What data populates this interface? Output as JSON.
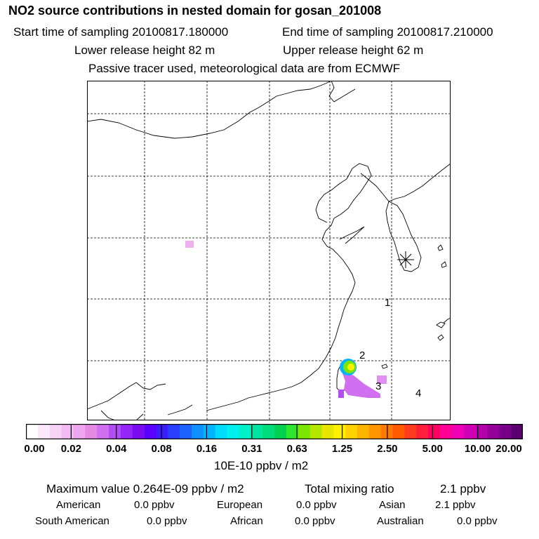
{
  "header": {
    "title": "NO2 source contributions in nested domain for gosan_201008",
    "start_label": "Start time of sampling 20100817.180000",
    "end_label": "End time of sampling 20100817.210000",
    "lower_label": "Lower release height   82 m",
    "upper_label": "Upper release height   62 m",
    "note": "Passive tracer used, meteorological data are from ECMWF"
  },
  "map": {
    "markers": [
      "1",
      "2",
      "3",
      "4"
    ],
    "receptor_symbol": "gosan station"
  },
  "colorbar": {
    "ticks": [
      "0.00",
      "0.02",
      "0.04",
      "0.08",
      "0.16",
      "0.31",
      "0.63",
      "1.25",
      "2.50",
      "5.00",
      "10.00",
      "20.00"
    ],
    "colors": [
      "#ffffff",
      "#fbe8fb",
      "#f7d2f7",
      "#f3bbf3",
      "#eea6ee",
      "#e48ae4",
      "#d070f0",
      "#b24df5",
      "#9426f7",
      "#7a0cf0",
      "#5b00ff",
      "#3c1cff",
      "#2a40ff",
      "#1d62ff",
      "#1090ff",
      "#00b4ff",
      "#00dcff",
      "#00f0f0",
      "#00f0c8",
      "#00e6a0",
      "#00dc78",
      "#00d050",
      "#2ee62e",
      "#7ae600",
      "#b4e600",
      "#e6e600",
      "#fff000",
      "#ffd200",
      "#ffb400",
      "#ff9600",
      "#ff7800",
      "#ff5a00",
      "#ff3c1e",
      "#ff1e3c",
      "#ff0064",
      "#ff0096",
      "#f000b4",
      "#d200b4",
      "#b400aa",
      "#96009a",
      "#780088",
      "#5a0070"
    ],
    "units": "10E-10 ppbv / m2"
  },
  "summary": {
    "max_label": "Maximum value  0.264E-09 ppbv / m2",
    "total_label": "Total mixing ratio",
    "total_value": "2.1 ppbv",
    "regions": [
      {
        "name": "American",
        "value": "0.0 ppbv"
      },
      {
        "name": "European",
        "value": "0.0 ppbv"
      },
      {
        "name": "Asian",
        "value": "2.1 ppbv"
      },
      {
        "name": "South American",
        "value": "0.0 ppbv"
      },
      {
        "name": "African",
        "value": "0.0 ppbv"
      },
      {
        "name": "Australian",
        "value": "0.0 ppbv"
      }
    ]
  }
}
